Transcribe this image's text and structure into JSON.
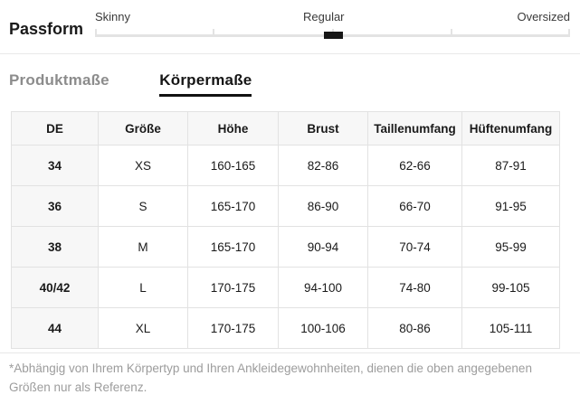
{
  "fit": {
    "title": "Passform",
    "options": [
      {
        "label": "Skinny"
      },
      {
        "label": "Regular"
      },
      {
        "label": "Oversized"
      }
    ],
    "selected": "Regular",
    "marker_position_percent": 50,
    "marker_color": "#161616",
    "track_color": "#e3e3e3"
  },
  "tabs": [
    {
      "label": "Produktmaße",
      "active": false
    },
    {
      "label": "Körpermaße",
      "active": true
    }
  ],
  "size_table": {
    "headers": [
      "DE",
      "Größe",
      "Höhe",
      "Brust",
      "Taillenumfang",
      "Hüftenumfang"
    ],
    "rows": [
      [
        "34",
        "XS",
        "160-165",
        "82-86",
        "62-66",
        "87-91"
      ],
      [
        "36",
        "S",
        "165-170",
        "86-90",
        "66-70",
        "91-95"
      ],
      [
        "38",
        "M",
        "165-170",
        "90-94",
        "70-74",
        "95-99"
      ],
      [
        "40/42",
        "L",
        "170-175",
        "94-100",
        "74-80",
        "99-105"
      ],
      [
        "44",
        "XL",
        "170-175",
        "100-106",
        "80-86",
        "105-111"
      ]
    ]
  },
  "footnote": "*Abhängig von Ihrem Körpertyp und Ihren Ankleidegewohnheiten, dienen die oben angegebenen Größen nur als Referenz.",
  "colors": {
    "tab_active": "#161616",
    "tab_inactive": "#8c8c8c",
    "table_header_bg": "#f7f7f7",
    "table_border": "#e2e2e2",
    "divider": "#e8e8e8",
    "footnote_text": "#9c9c9c"
  }
}
